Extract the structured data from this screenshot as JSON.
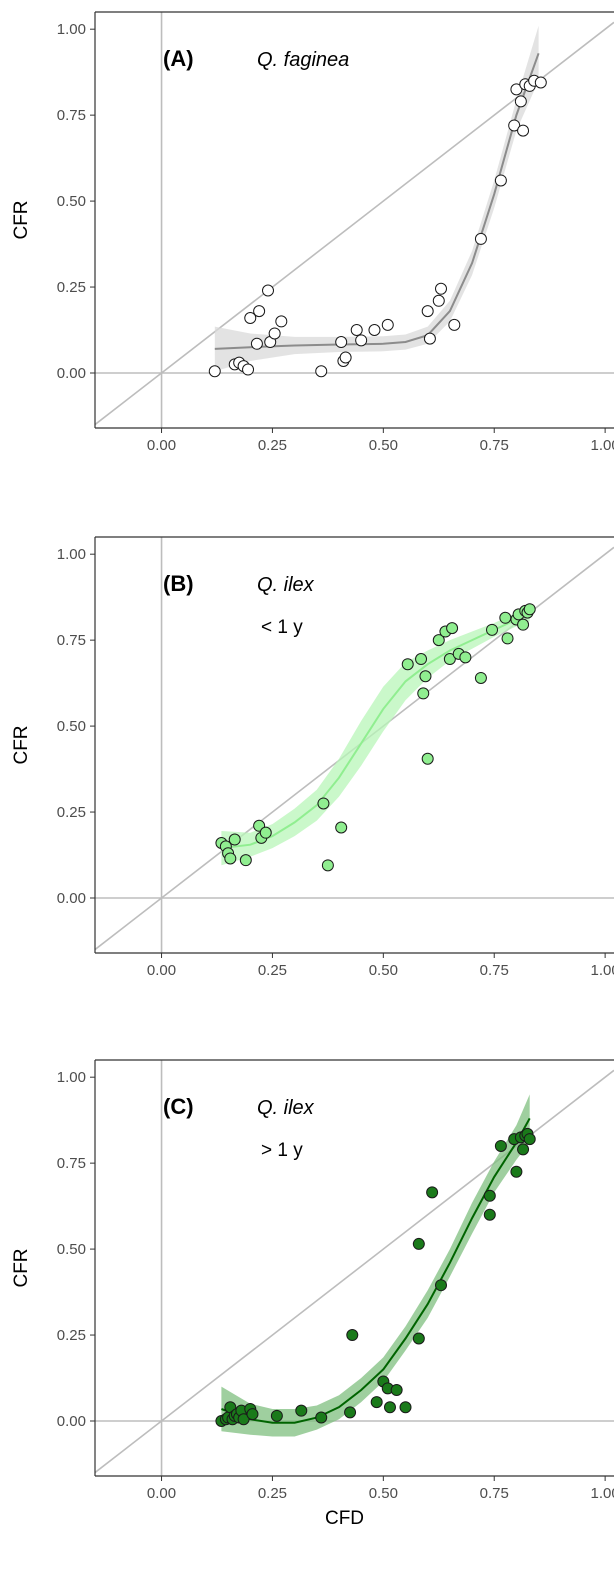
{
  "chart_data": [
    {
      "type": "scatter",
      "panel": "(A)",
      "species": "Q. faginea",
      "age": "",
      "xlabel": "",
      "ylabel": "CFR",
      "xlim": [
        -0.15,
        1.02
      ],
      "ylim": [
        -0.16,
        1.05
      ],
      "xticks": [
        "0.00",
        "0.25",
        "0.50",
        "0.75",
        "1.00"
      ],
      "yticks": [
        "0.00",
        "0.25",
        "0.50",
        "0.75",
        "1.00"
      ],
      "reference_lines": [
        "y = x",
        "x = 0",
        "y = 0"
      ],
      "point_fill": "#ffffff",
      "line_color": "#8c8c8c",
      "band_color": "#d9d9d9",
      "points": [
        [
          0.12,
          0.005
        ],
        [
          0.165,
          0.025
        ],
        [
          0.175,
          0.03
        ],
        [
          0.185,
          0.02
        ],
        [
          0.195,
          0.01
        ],
        [
          0.2,
          0.16
        ],
        [
          0.215,
          0.085
        ],
        [
          0.22,
          0.18
        ],
        [
          0.24,
          0.24
        ],
        [
          0.245,
          0.09
        ],
        [
          0.255,
          0.115
        ],
        [
          0.27,
          0.15
        ],
        [
          0.36,
          0.005
        ],
        [
          0.41,
          0.035
        ],
        [
          0.405,
          0.09
        ],
        [
          0.415,
          0.045
        ],
        [
          0.44,
          0.125
        ],
        [
          0.45,
          0.095
        ],
        [
          0.48,
          0.125
        ],
        [
          0.51,
          0.14
        ],
        [
          0.6,
          0.18
        ],
        [
          0.605,
          0.1
        ],
        [
          0.625,
          0.21
        ],
        [
          0.63,
          0.245
        ],
        [
          0.66,
          0.14
        ],
        [
          0.72,
          0.39
        ],
        [
          0.765,
          0.56
        ],
        [
          0.795,
          0.72
        ],
        [
          0.8,
          0.825
        ],
        [
          0.81,
          0.79
        ],
        [
          0.815,
          0.705
        ],
        [
          0.82,
          0.84
        ],
        [
          0.83,
          0.835
        ],
        [
          0.84,
          0.85
        ],
        [
          0.855,
          0.845
        ]
      ],
      "fit": [
        [
          0.12,
          0.07
        ],
        [
          0.2,
          0.075
        ],
        [
          0.3,
          0.08
        ],
        [
          0.4,
          0.083
        ],
        [
          0.5,
          0.085
        ],
        [
          0.55,
          0.09
        ],
        [
          0.6,
          0.11
        ],
        [
          0.65,
          0.18
        ],
        [
          0.7,
          0.32
        ],
        [
          0.75,
          0.52
        ],
        [
          0.8,
          0.75
        ],
        [
          0.85,
          0.93
        ]
      ],
      "band_half_width": [
        0.065,
        0.04,
        0.025,
        0.022,
        0.022,
        0.022,
        0.025,
        0.03,
        0.035,
        0.04,
        0.045,
        0.08
      ]
    },
    {
      "type": "scatter",
      "panel": "(B)",
      "species": "Q. ilex",
      "age": "< 1 y",
      "xlabel": "",
      "ylabel": "CFR",
      "xlim": [
        -0.15,
        1.02
      ],
      "ylim": [
        -0.16,
        1.05
      ],
      "xticks": [
        "0.00",
        "0.25",
        "0.50",
        "0.75",
        "1.00"
      ],
      "yticks": [
        "0.00",
        "0.25",
        "0.50",
        "0.75",
        "1.00"
      ],
      "reference_lines": [
        "y = x",
        "x = 0",
        "y = 0"
      ],
      "point_fill": "#90ee90",
      "line_color": "#90ee90",
      "band_color": "#b8f5b8",
      "points": [
        [
          0.135,
          0.16
        ],
        [
          0.145,
          0.15
        ],
        [
          0.15,
          0.13
        ],
        [
          0.155,
          0.115
        ],
        [
          0.165,
          0.17
        ],
        [
          0.19,
          0.11
        ],
        [
          0.22,
          0.21
        ],
        [
          0.225,
          0.175
        ],
        [
          0.235,
          0.19
        ],
        [
          0.365,
          0.275
        ],
        [
          0.375,
          0.095
        ],
        [
          0.405,
          0.205
        ],
        [
          0.555,
          0.68
        ],
        [
          0.585,
          0.695
        ],
        [
          0.59,
          0.595
        ],
        [
          0.595,
          0.645
        ],
        [
          0.6,
          0.405
        ],
        [
          0.625,
          0.75
        ],
        [
          0.64,
          0.775
        ],
        [
          0.65,
          0.695
        ],
        [
          0.655,
          0.785
        ],
        [
          0.67,
          0.71
        ],
        [
          0.685,
          0.7
        ],
        [
          0.72,
          0.64
        ],
        [
          0.745,
          0.78
        ],
        [
          0.775,
          0.815
        ],
        [
          0.78,
          0.755
        ],
        [
          0.8,
          0.81
        ],
        [
          0.805,
          0.825
        ],
        [
          0.815,
          0.795
        ],
        [
          0.82,
          0.835
        ],
        [
          0.825,
          0.83
        ],
        [
          0.83,
          0.84
        ]
      ],
      "fit": [
        [
          0.135,
          0.145
        ],
        [
          0.2,
          0.155
        ],
        [
          0.25,
          0.18
        ],
        [
          0.3,
          0.22
        ],
        [
          0.35,
          0.27
        ],
        [
          0.4,
          0.35
        ],
        [
          0.45,
          0.45
        ],
        [
          0.5,
          0.55
        ],
        [
          0.55,
          0.63
        ],
        [
          0.6,
          0.68
        ],
        [
          0.65,
          0.72
        ],
        [
          0.7,
          0.75
        ],
        [
          0.75,
          0.78
        ],
        [
          0.8,
          0.81
        ],
        [
          0.83,
          0.83
        ]
      ],
      "band_half_width": [
        0.05,
        0.035,
        0.035,
        0.04,
        0.045,
        0.055,
        0.065,
        0.065,
        0.055,
        0.04,
        0.03,
        0.025,
        0.02,
        0.02,
        0.025
      ]
    },
    {
      "type": "scatter",
      "panel": "(C)",
      "species": "Q. ilex",
      "age": "> 1 y",
      "xlabel": "CFD",
      "ylabel": "CFR",
      "xlim": [
        -0.15,
        1.02
      ],
      "ylim": [
        -0.16,
        1.05
      ],
      "xticks": [
        "0.00",
        "0.25",
        "0.50",
        "0.75",
        "1.00"
      ],
      "yticks": [
        "0.00",
        "0.25",
        "0.50",
        "0.75",
        "1.00"
      ],
      "reference_lines": [
        "y = x",
        "x = 0",
        "y = 0"
      ],
      "point_fill": "#1a7a1a",
      "line_color": "#006400",
      "band_color": "#7fbf7f",
      "points": [
        [
          0.135,
          0.0
        ],
        [
          0.145,
          0.005
        ],
        [
          0.15,
          0.01
        ],
        [
          0.155,
          0.04
        ],
        [
          0.16,
          0.005
        ],
        [
          0.165,
          0.015
        ],
        [
          0.17,
          0.02
        ],
        [
          0.175,
          0.01
        ],
        [
          0.18,
          0.03
        ],
        [
          0.185,
          0.005
        ],
        [
          0.2,
          0.035
        ],
        [
          0.205,
          0.02
        ],
        [
          0.26,
          0.015
        ],
        [
          0.315,
          0.03
        ],
        [
          0.36,
          0.01
        ],
        [
          0.425,
          0.025
        ],
        [
          0.43,
          0.25
        ],
        [
          0.485,
          0.055
        ],
        [
          0.5,
          0.115
        ],
        [
          0.51,
          0.095
        ],
        [
          0.515,
          0.04
        ],
        [
          0.53,
          0.09
        ],
        [
          0.55,
          0.04
        ],
        [
          0.58,
          0.515
        ],
        [
          0.58,
          0.24
        ],
        [
          0.61,
          0.665
        ],
        [
          0.63,
          0.395
        ],
        [
          0.74,
          0.6
        ],
        [
          0.74,
          0.655
        ],
        [
          0.765,
          0.8
        ],
        [
          0.795,
          0.82
        ],
        [
          0.8,
          0.725
        ],
        [
          0.81,
          0.825
        ],
        [
          0.815,
          0.79
        ],
        [
          0.82,
          0.83
        ],
        [
          0.825,
          0.835
        ],
        [
          0.83,
          0.82
        ]
      ],
      "fit": [
        [
          0.135,
          0.035
        ],
        [
          0.2,
          0.005
        ],
        [
          0.25,
          -0.005
        ],
        [
          0.3,
          -0.005
        ],
        [
          0.35,
          0.01
        ],
        [
          0.4,
          0.04
        ],
        [
          0.45,
          0.09
        ],
        [
          0.5,
          0.15
        ],
        [
          0.55,
          0.24
        ],
        [
          0.6,
          0.34
        ],
        [
          0.65,
          0.46
        ],
        [
          0.7,
          0.59
        ],
        [
          0.75,
          0.71
        ],
        [
          0.8,
          0.81
        ],
        [
          0.83,
          0.88
        ]
      ],
      "band_half_width": [
        0.065,
        0.045,
        0.04,
        0.04,
        0.035,
        0.035,
        0.035,
        0.035,
        0.035,
        0.04,
        0.04,
        0.045,
        0.045,
        0.05,
        0.07
      ]
    }
  ]
}
